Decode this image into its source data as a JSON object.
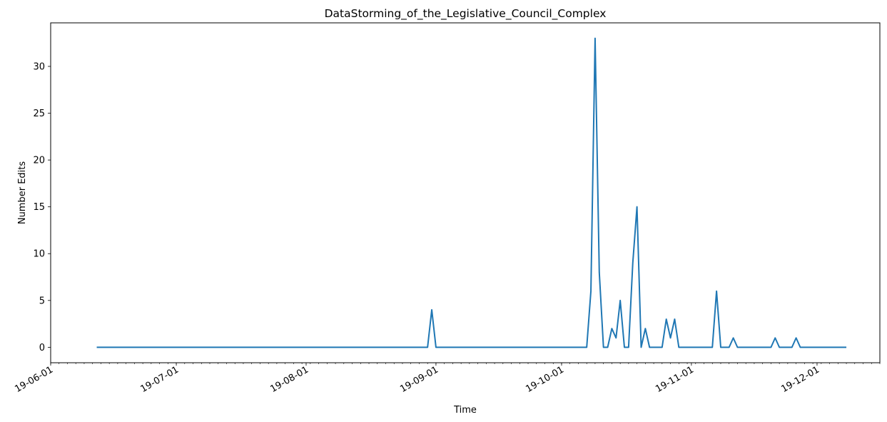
{
  "chart_data": {
    "type": "line",
    "title": "DataStorming_of_the_Legislative_Council_Complex",
    "xlabel": "Time",
    "ylabel": "Number Edits",
    "xlim": [
      "2019-06-01",
      "2019-12-16"
    ],
    "ylim": [
      -1.65,
      34.65
    ],
    "yticks": [
      0,
      5,
      10,
      15,
      20,
      25,
      30
    ],
    "xticks": [
      {
        "date": "2019-06-01",
        "label": "19-06-01"
      },
      {
        "date": "2019-07-01",
        "label": "19-07-01"
      },
      {
        "date": "2019-08-01",
        "label": "19-08-01"
      },
      {
        "date": "2019-09-01",
        "label": "19-09-01"
      },
      {
        "date": "2019-10-01",
        "label": "19-10-01"
      },
      {
        "date": "2019-11-01",
        "label": "19-11-01"
      },
      {
        "date": "2019-12-01",
        "label": "19-12-01"
      }
    ],
    "grid": false,
    "series": [
      {
        "color": "#1f77b4",
        "points": [
          [
            "2019-06-12",
            0
          ],
          [
            "2019-08-30",
            0
          ],
          [
            "2019-08-31",
            4
          ],
          [
            "2019-09-01",
            0
          ],
          [
            "2019-10-07",
            0
          ],
          [
            "2019-10-08",
            6
          ],
          [
            "2019-10-09",
            33
          ],
          [
            "2019-10-10",
            8
          ],
          [
            "2019-10-11",
            0
          ],
          [
            "2019-10-12",
            0
          ],
          [
            "2019-10-13",
            2
          ],
          [
            "2019-10-14",
            1
          ],
          [
            "2019-10-15",
            5
          ],
          [
            "2019-10-16",
            0
          ],
          [
            "2019-10-17",
            0
          ],
          [
            "2019-10-18",
            9
          ],
          [
            "2019-10-19",
            15
          ],
          [
            "2019-10-20",
            0
          ],
          [
            "2019-10-21",
            2
          ],
          [
            "2019-10-22",
            0
          ],
          [
            "2019-10-25",
            0
          ],
          [
            "2019-10-26",
            3
          ],
          [
            "2019-10-27",
            1
          ],
          [
            "2019-10-28",
            3
          ],
          [
            "2019-10-29",
            0
          ],
          [
            "2019-11-06",
            0
          ],
          [
            "2019-11-07",
            6
          ],
          [
            "2019-11-08",
            0
          ],
          [
            "2019-11-10",
            0
          ],
          [
            "2019-11-11",
            1
          ],
          [
            "2019-11-12",
            0
          ],
          [
            "2019-11-20",
            0
          ],
          [
            "2019-11-21",
            1
          ],
          [
            "2019-11-22",
            0
          ],
          [
            "2019-11-25",
            0
          ],
          [
            "2019-11-26",
            1
          ],
          [
            "2019-11-27",
            0
          ],
          [
            "2019-12-08",
            0
          ]
        ]
      }
    ]
  }
}
